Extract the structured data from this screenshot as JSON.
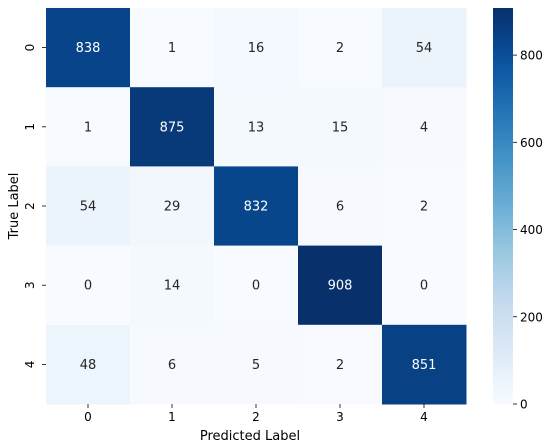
{
  "chart_data": {
    "type": "heatmap",
    "xlabel": "Predicted Label",
    "ylabel": "True Label",
    "x_categories": [
      "0",
      "1",
      "2",
      "3",
      "4"
    ],
    "y_categories": [
      "0",
      "1",
      "2",
      "3",
      "4"
    ],
    "values": [
      [
        838,
        1,
        16,
        2,
        54
      ],
      [
        1,
        875,
        13,
        15,
        4
      ],
      [
        54,
        29,
        832,
        6,
        2
      ],
      [
        0,
        14,
        0,
        908,
        0
      ],
      [
        48,
        6,
        5,
        2,
        851
      ]
    ],
    "colormap": "Blues",
    "vmin": 0,
    "vmax": 908,
    "colorbar_ticks": [
      0,
      200,
      400,
      600,
      800
    ],
    "annotate": true
  }
}
